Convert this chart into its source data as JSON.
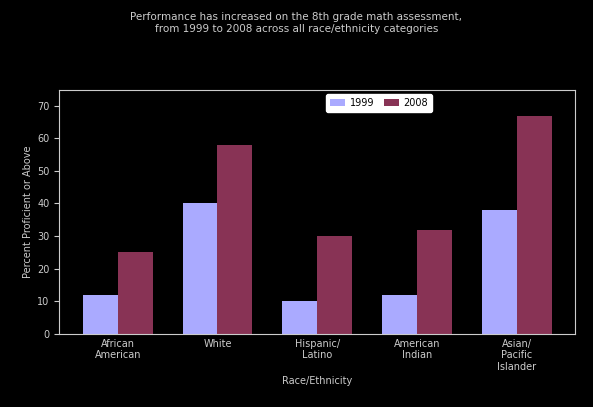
{
  "title_line1": "Performance has increased on the 8th grade math assessment,",
  "title_line2": "from 1999 to 2008 across all race/ethnicity categories",
  "xlabel": "Race/Ethnicity",
  "ylabel": "Percent Proficient or Above",
  "categories": [
    "African\nAmerican",
    "White",
    "Hispanic/\nLatino",
    "American\nIndian",
    "Asian/\nPacific\nIslander"
  ],
  "values_1999": [
    12,
    40,
    10,
    12,
    38
  ],
  "values_2008": [
    25,
    58,
    30,
    32,
    67
  ],
  "color_1999": "#aaaaff",
  "color_2008": "#883355",
  "ylim_max": 75,
  "background_color": "#000000",
  "text_color": "#cccccc",
  "legend_labels": [
    "1999",
    "2008"
  ],
  "title_fontsize": 7.5,
  "axis_fontsize": 7,
  "tick_fontsize": 7
}
